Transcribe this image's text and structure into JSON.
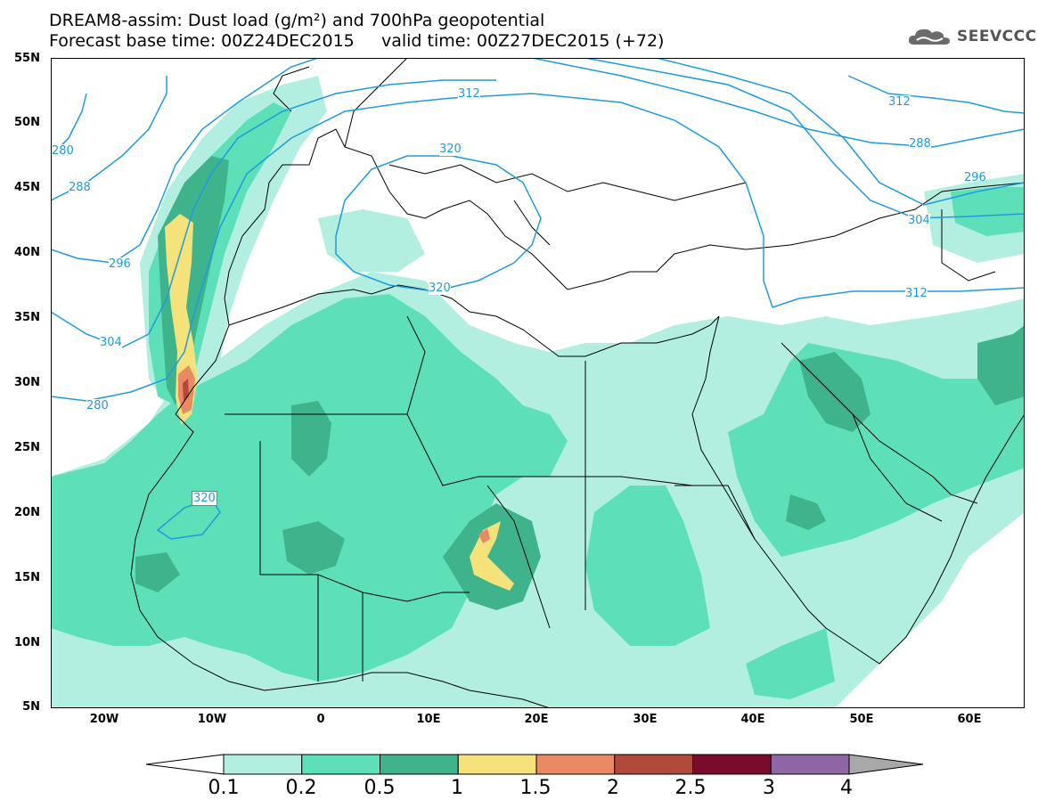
{
  "title": {
    "line1": "DREAM8-assim: Dust load (g/m²) and 700hPa geopotential",
    "line2": "Forecast base time: 00Z24DEC2015     valid time: 00Z27DEC2015 (+72)"
  },
  "logo": {
    "text": "SEEVCCC",
    "icon": "cloud-icon"
  },
  "map": {
    "lat_labels": [
      "55N",
      "50N",
      "45N",
      "40N",
      "35N",
      "30N",
      "25N",
      "20N",
      "15N",
      "10N",
      "5N"
    ],
    "lon_labels": [
      "20W",
      "10W",
      "0",
      "10E",
      "20E",
      "30E",
      "40E",
      "50E",
      "60E"
    ],
    "contour_labels": [
      "312",
      "320",
      "320",
      "320",
      "280",
      "288",
      "296",
      "304",
      "312",
      "280",
      "288",
      "296",
      "304",
      "312"
    ]
  },
  "colorbar": {
    "labels": [
      "0.1",
      "0.2",
      "0.5",
      "1",
      "1.5",
      "2",
      "2.5",
      "3",
      "4"
    ],
    "colors": [
      "#b2efe1",
      "#5ddfb8",
      "#3fb48c",
      "#f5e27a",
      "#e98a65",
      "#b04a3b",
      "#7a0c2b",
      "#8f66a4",
      "#a8a8a8"
    ],
    "under_color": "#ffffff"
  },
  "colors": {
    "contour": "#1e9be0",
    "border": "#000000",
    "dust_low": "#b2efe1",
    "dust_mid": "#5ddfb8",
    "dust_high": "#3fb48c",
    "dust_1": "#f5e27a",
    "dust_15": "#e98a65",
    "dust_2": "#b04a3b"
  }
}
